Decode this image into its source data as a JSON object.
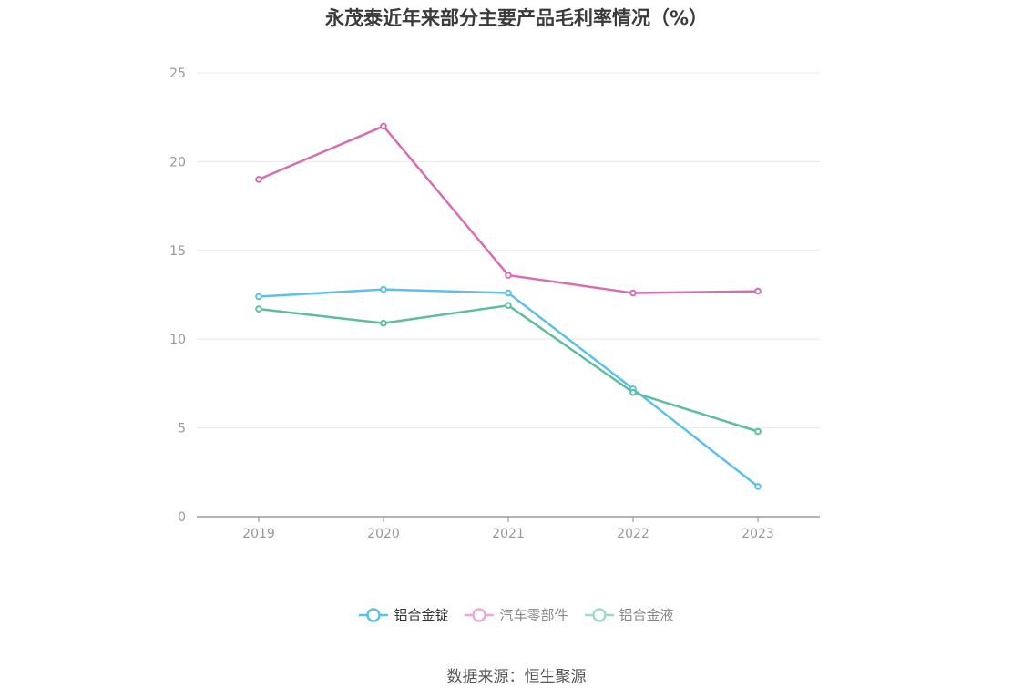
{
  "title": "永茂泰近年来部分主要产品毛利率情况（%）",
  "source": "数据来源：恒生聚源",
  "chart_data": {
    "type": "line",
    "title": "永茂泰近年来部分主要产品毛利率情况（%）",
    "x": [
      "2019",
      "2020",
      "2021",
      "2022",
      "2023"
    ],
    "ylim": [
      0,
      25
    ],
    "yticks": [
      0,
      5,
      10,
      15,
      20,
      25
    ],
    "grid": true,
    "legend_position": "bottom",
    "series": [
      {
        "name": "铝合金锭",
        "color": "#5bc0eb",
        "values": [
          12.4,
          12.8,
          12.6,
          7.2,
          1.7
        ]
      },
      {
        "name": "汽车零部件",
        "color": "#d66db2",
        "values": [
          19.0,
          22.0,
          13.6,
          12.6,
          12.7
        ]
      },
      {
        "name": "铝合金液",
        "color": "#5cbf9b",
        "values": [
          11.7,
          10.9,
          11.9,
          7.0,
          4.8
        ]
      }
    ]
  },
  "legend": [
    {
      "label": "铝合金锭",
      "color": "#5bc0eb",
      "text_color": "#333333"
    },
    {
      "label": "汽车零部件",
      "color": "#f0a9d6",
      "text_color": "#888888"
    },
    {
      "label": "铝合金液",
      "color": "#9fdcc8",
      "text_color": "#888888"
    }
  ]
}
